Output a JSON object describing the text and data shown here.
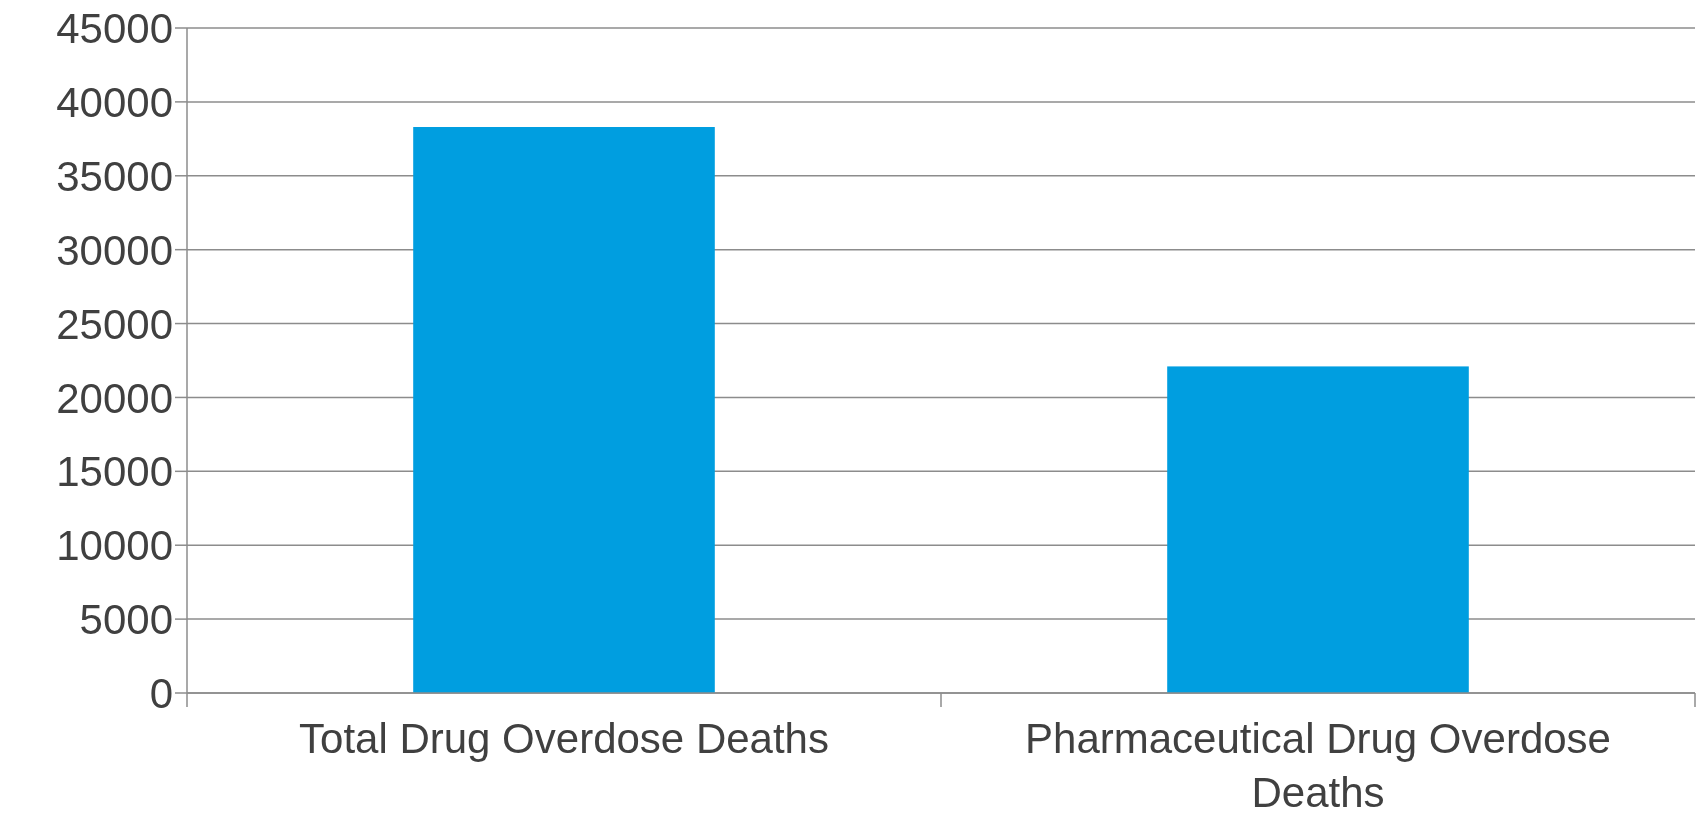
{
  "chart_data": {
    "type": "bar",
    "categories": [
      "Total Drug Overdose Deaths",
      "Pharmaceutical Drug Overdose Deaths"
    ],
    "values": [
      38300,
      22100
    ],
    "color": "#009ee0",
    "ylim": [
      0,
      45000
    ],
    "yticks": [
      0,
      5000,
      10000,
      15000,
      20000,
      25000,
      30000,
      35000,
      40000,
      45000
    ],
    "grid": "y"
  }
}
